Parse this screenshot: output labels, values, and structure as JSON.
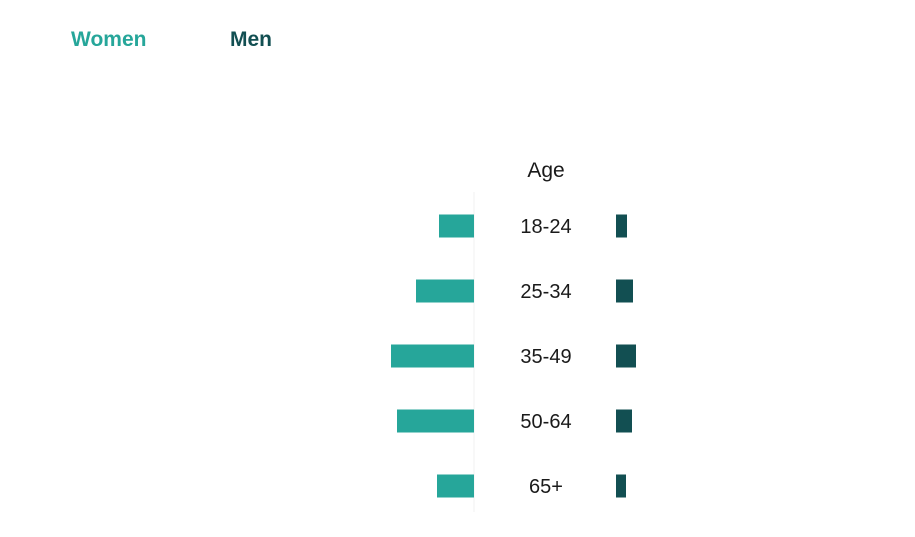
{
  "colors": {
    "women": "#26a69a",
    "men": "#124f52",
    "divider": "#f0f0f0",
    "text": "#1a1a1a"
  },
  "legend": {
    "women": "Women",
    "men": "Men"
  },
  "chart_data": {
    "type": "bar",
    "orientation": "horizontal-butterfly",
    "title": "",
    "category_axis_label": "Age",
    "categories": [
      "18-24",
      "25-34",
      "35-49",
      "50-64",
      "65+"
    ],
    "series": [
      {
        "name": "Women",
        "values": [
          35,
          58,
          83,
          77,
          37
        ]
      },
      {
        "name": "Men",
        "values": [
          11,
          17,
          20,
          16,
          10
        ]
      }
    ],
    "legend_position": "top-left",
    "grid": false
  }
}
